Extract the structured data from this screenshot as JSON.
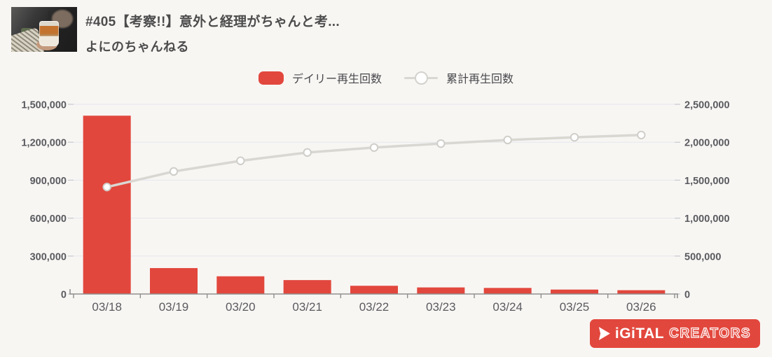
{
  "colors": {
    "background": "#f8f6f3",
    "bar_red": "#e2473d",
    "line_gray": "#d9d7d2",
    "marker_stroke": "#cfcec9",
    "gridline": "#e4e7f0",
    "axis_line": "#8f8f8f",
    "tick_mark": "#c9ccd3",
    "text_dark": "#4c4c4c",
    "tick_text": "#5a5b60",
    "brand_red": "#e2473d"
  },
  "header": {
    "title": "#405【考察!!】意外と経理がちゃんと考...",
    "channel": "よにのちゃんねる"
  },
  "legend": [
    {
      "label": "デイリー再生回数",
      "type": "bar"
    },
    {
      "label": "累計再生回数",
      "type": "line"
    }
  ],
  "chart_data": {
    "type": "bar",
    "subtype": "bar+line dual-axis",
    "categories": [
      "03/18",
      "03/19",
      "03/20",
      "03/21",
      "03/22",
      "03/23",
      "03/24",
      "03/25",
      "03/26"
    ],
    "series": [
      {
        "name": "デイリー再生回数",
        "type": "bar",
        "y_axis": "left",
        "values": [
          1410000,
          205000,
          140000,
          110000,
          65000,
          52000,
          48000,
          35000,
          30000
        ]
      },
      {
        "name": "累計再生回数",
        "type": "line",
        "y_axis": "right",
        "marker": "open-circle",
        "values": [
          1410000,
          1615000,
          1755000,
          1865000,
          1930000,
          1982000,
          2030000,
          2065000,
          2095000
        ]
      }
    ],
    "left_axis": {
      "min": 0,
      "max": 1500000,
      "tick_labels": [
        "1,500,000",
        "1,200,000",
        "900,000",
        "600,000",
        "300,000",
        "0"
      ]
    },
    "right_axis": {
      "min": 0,
      "max": 2500000,
      "tick_labels": [
        "2,500,000",
        "2,000,000",
        "1,500,000",
        "1,000,000",
        "500,000",
        "0"
      ]
    },
    "grid": true,
    "legend_position": "top-center"
  },
  "logo": {
    "brand_text": "DiGiTAL CREATORS",
    "solid_part": "iGiTAL",
    "outline_part": "CREATORS"
  }
}
